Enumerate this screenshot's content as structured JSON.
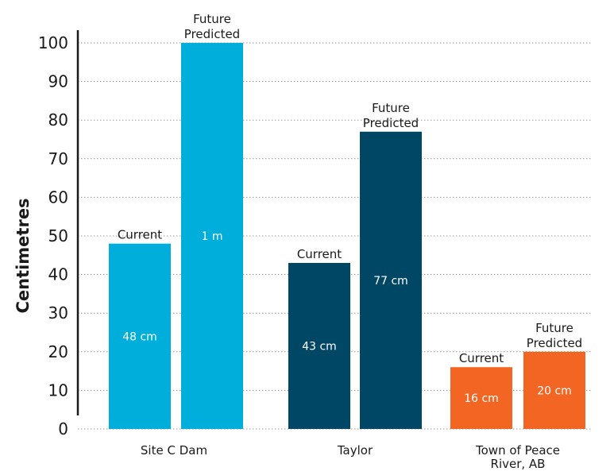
{
  "chart_data": {
    "type": "bar",
    "ylabel": "Centimetres",
    "ylim": [
      0,
      100
    ],
    "yticks": [
      0,
      10,
      20,
      30,
      40,
      50,
      60,
      70,
      80,
      90,
      100
    ],
    "grid": true,
    "groups": [
      {
        "category": "Site C Dam",
        "color": "#00aedb",
        "bars": [
          {
            "label": "Current",
            "value": 48,
            "value_label": "48 cm"
          },
          {
            "label": "Future Predicted",
            "value": 100,
            "value_label": "1 m"
          }
        ]
      },
      {
        "category": "Taylor",
        "color": "#004766",
        "bars": [
          {
            "label": "Current",
            "value": 43,
            "value_label": "43 cm"
          },
          {
            "label": "Future Predicted",
            "value": 77,
            "value_label": "77 cm"
          }
        ]
      },
      {
        "category": "Town of Peace River, AB",
        "color": "#f26522",
        "bars": [
          {
            "label": "Current",
            "value": 16,
            "value_label": "16 cm"
          },
          {
            "label": "Future Predicted",
            "value": 20,
            "value_label": "20 cm"
          }
        ]
      }
    ]
  }
}
